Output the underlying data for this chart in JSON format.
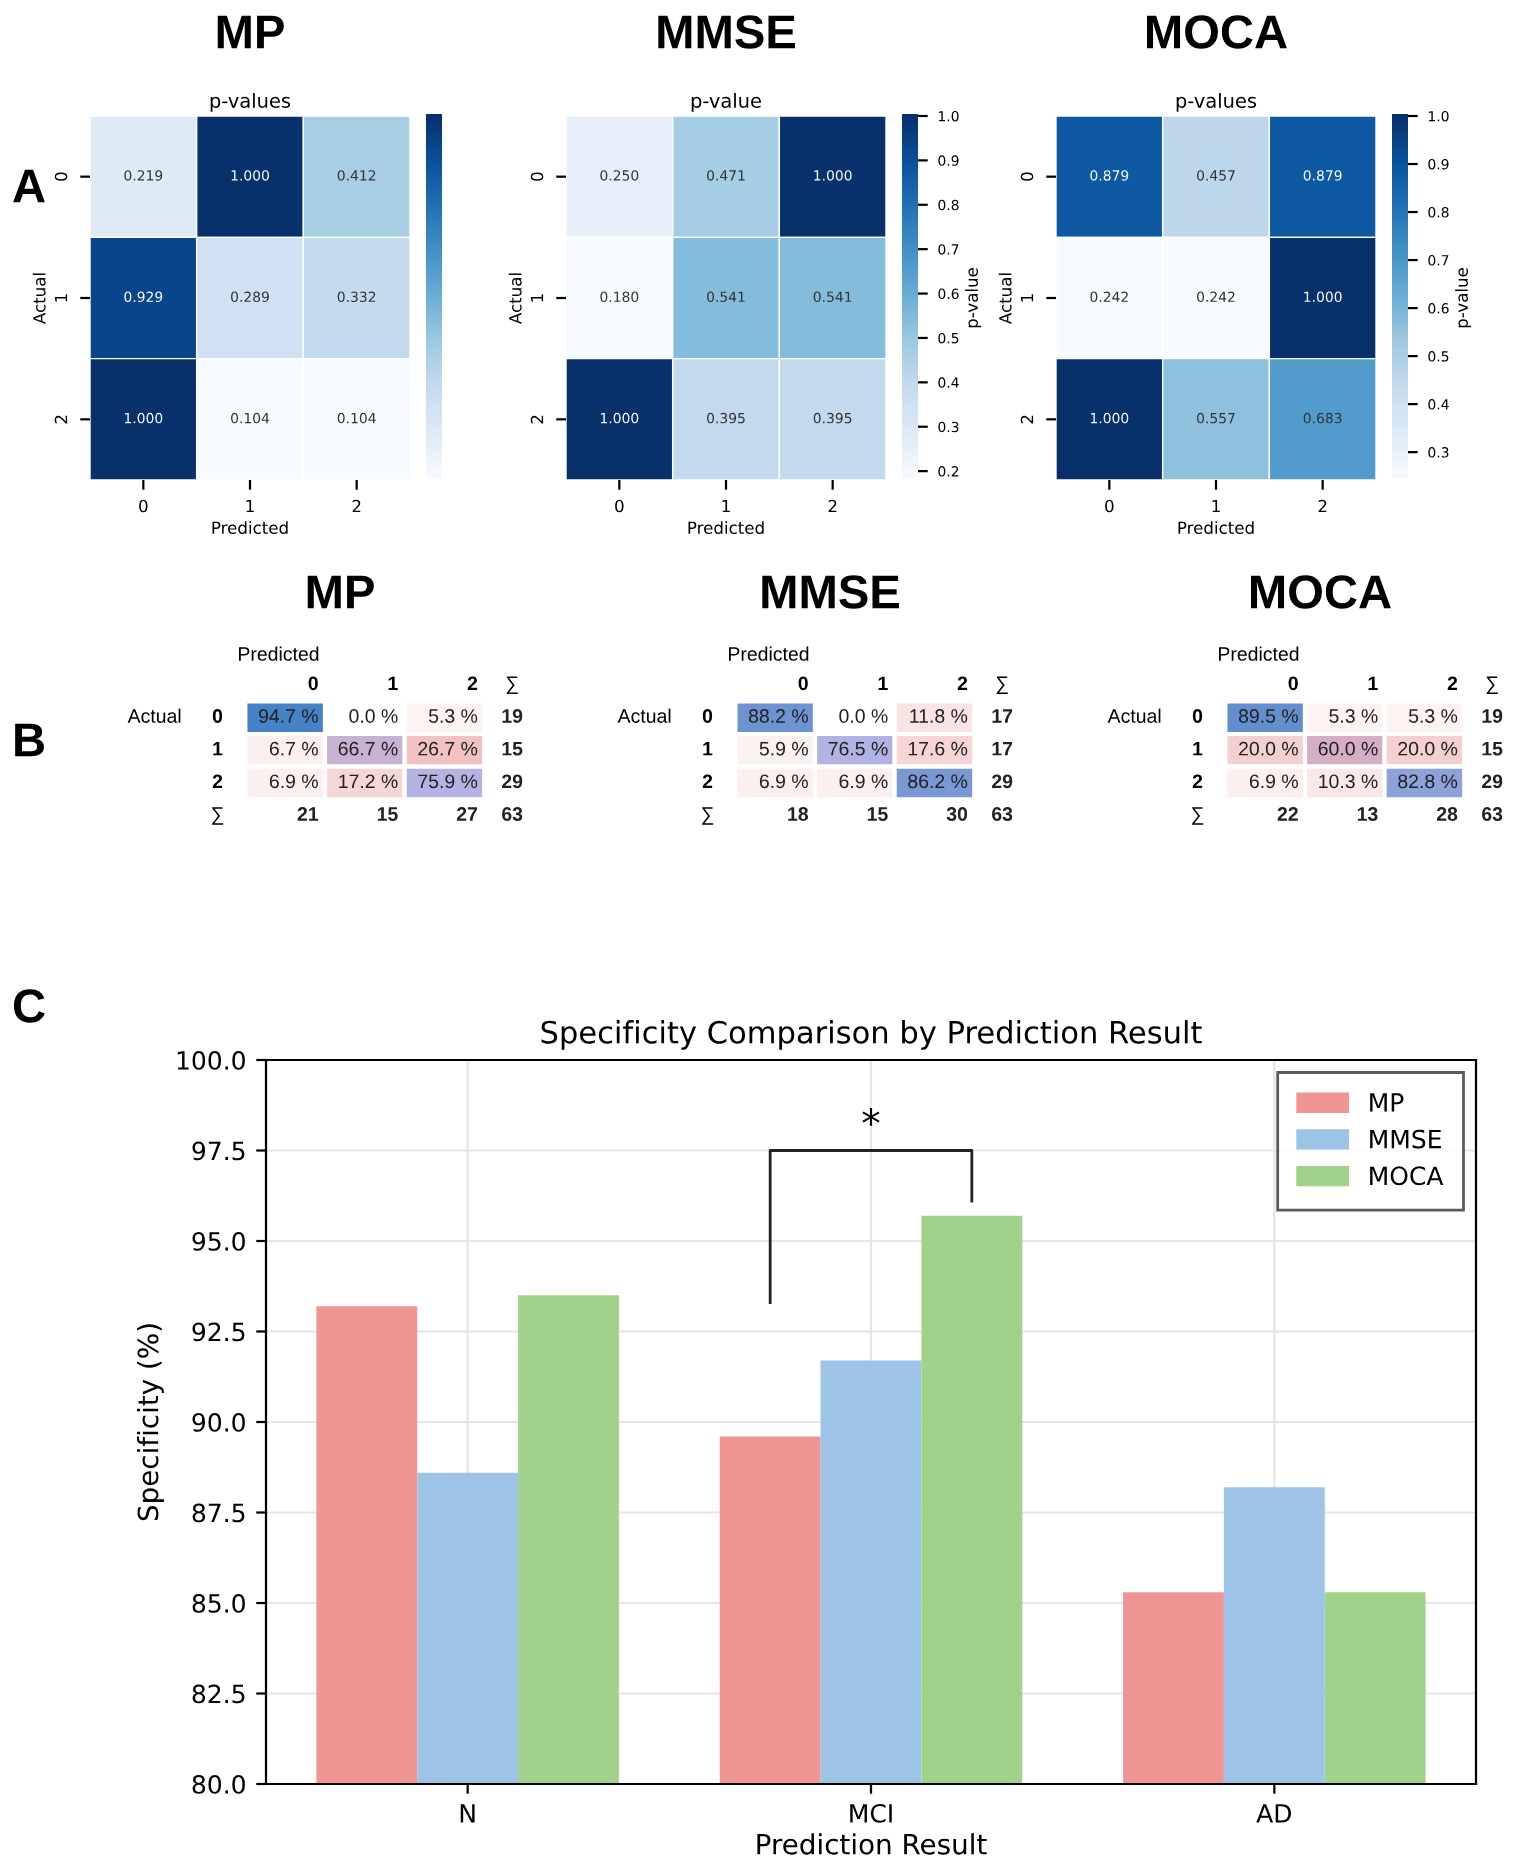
{
  "chart_data": [
    {
      "type": "heatmap",
      "title": "MP",
      "subtitle": "p-values",
      "xlabel": "Predicted",
      "ylabel": "Actual",
      "annotations": [
        "A"
      ],
      "categories": [
        "0",
        "1",
        "2"
      ],
      "y_categories": [
        "0",
        "1",
        "2"
      ],
      "cells": [
        [
          0.219,
          1.0,
          0.412
        ],
        [
          0.929,
          0.289,
          0.332
        ],
        [
          1.0,
          0.104,
          0.104
        ]
      ],
      "cell_labels": [
        [
          "0.219",
          "1.000",
          "0.412"
        ],
        [
          "0.929",
          "0.289",
          "0.332"
        ],
        [
          "1.000",
          "0.104",
          "0.104"
        ]
      ]
    },
    {
      "type": "heatmap",
      "title": "MMSE",
      "subtitle": "p-value",
      "xlabel": "Predicted",
      "ylabel": "Actual",
      "clabel": "p-value",
      "categories": [
        "0",
        "1",
        "2"
      ],
      "y_categories": [
        "0",
        "1",
        "2"
      ],
      "cells": [
        [
          0.25,
          0.471,
          1.0
        ],
        [
          0.18,
          0.541,
          0.541
        ],
        [
          1.0,
          0.395,
          0.395
        ]
      ],
      "cell_labels": [
        [
          "0.250",
          "0.471",
          "1.000"
        ],
        [
          "0.180",
          "0.541",
          "0.541"
        ],
        [
          "1.000",
          "0.395",
          "0.395"
        ]
      ],
      "clim": [
        0.18,
        1.0
      ],
      "cticks": [
        {
          "value": 0.2,
          "label": "0.2"
        },
        {
          "value": 0.3,
          "label": "0.3"
        },
        {
          "value": 0.4,
          "label": "0.4"
        },
        {
          "value": 0.5,
          "label": "0.5"
        },
        {
          "value": 0.6,
          "label": "0.6"
        },
        {
          "value": 0.7,
          "label": "0.7"
        },
        {
          "value": 0.8,
          "label": "0.8"
        },
        {
          "value": 0.9,
          "label": "0.9"
        },
        {
          "value": 1.0,
          "label": "1.0"
        }
      ]
    },
    {
      "type": "heatmap",
      "title": "MOCA",
      "subtitle": "p-values",
      "xlabel": "Predicted",
      "ylabel": "Actual",
      "clabel": "p-value",
      "categories": [
        "0",
        "1",
        "2"
      ],
      "y_categories": [
        "0",
        "1",
        "2"
      ],
      "cells": [
        [
          0.879,
          0.457,
          0.879
        ],
        [
          0.242,
          0.242,
          1.0
        ],
        [
          1.0,
          0.557,
          0.683
        ]
      ],
      "cell_labels": [
        [
          "0.879",
          "0.457",
          "0.879"
        ],
        [
          "0.242",
          "0.242",
          "1.000"
        ],
        [
          "1.000",
          "0.557",
          "0.683"
        ]
      ],
      "clim": [
        0.242,
        1.0
      ],
      "cticks": [
        {
          "value": 0.3,
          "label": "0.3"
        },
        {
          "value": 0.4,
          "label": "0.4"
        },
        {
          "value": 0.5,
          "label": "0.5"
        },
        {
          "value": 0.6,
          "label": "0.6"
        },
        {
          "value": 0.7,
          "label": "0.7"
        },
        {
          "value": 0.8,
          "label": "0.8"
        },
        {
          "value": 0.9,
          "label": "0.9"
        },
        {
          "value": 1.0,
          "label": "1.0"
        }
      ]
    },
    {
      "type": "heatmap",
      "title": "MP",
      "xlabel": "Predicted",
      "ylabel": "Actual",
      "annotations": [
        "B"
      ],
      "categories": [
        "0",
        "1",
        "2",
        "∑"
      ],
      "y_categories": [
        "0",
        "1",
        "2",
        "∑"
      ],
      "cells": [
        [
          94.7,
          0.0,
          5.3,
          19
        ],
        [
          6.7,
          66.7,
          26.7,
          15
        ],
        [
          6.9,
          17.2,
          75.9,
          29
        ],
        [
          21,
          15,
          27,
          63
        ]
      ],
      "cell_labels": [
        [
          "94.7 %",
          "0.0 %",
          "5.3 %",
          "19"
        ],
        [
          "6.7 %",
          "66.7 %",
          "26.7 %",
          "15"
        ],
        [
          "6.9 %",
          "17.2 %",
          "75.9 %",
          "29"
        ],
        [
          "21",
          "15",
          "27",
          "63"
        ]
      ]
    },
    {
      "type": "heatmap",
      "title": "MMSE",
      "xlabel": "Predicted",
      "ylabel": "Actual",
      "categories": [
        "0",
        "1",
        "2",
        "∑"
      ],
      "y_categories": [
        "0",
        "1",
        "2",
        "∑"
      ],
      "cells": [
        [
          88.2,
          0.0,
          11.8,
          17
        ],
        [
          5.9,
          76.5,
          17.6,
          17
        ],
        [
          6.9,
          6.9,
          86.2,
          29
        ],
        [
          18,
          15,
          30,
          63
        ]
      ],
      "cell_labels": [
        [
          "88.2 %",
          "0.0 %",
          "11.8 %",
          "17"
        ],
        [
          "5.9 %",
          "76.5 %",
          "17.6 %",
          "17"
        ],
        [
          "6.9 %",
          "6.9 %",
          "86.2 %",
          "29"
        ],
        [
          "18",
          "15",
          "30",
          "63"
        ]
      ]
    },
    {
      "type": "heatmap",
      "title": "MOCA",
      "xlabel": "Predicted",
      "ylabel": "Actual",
      "categories": [
        "0",
        "1",
        "2",
        "∑"
      ],
      "y_categories": [
        "0",
        "1",
        "2",
        "∑"
      ],
      "cells": [
        [
          89.5,
          5.3,
          5.3,
          19
        ],
        [
          20.0,
          60.0,
          20.0,
          15
        ],
        [
          6.9,
          10.3,
          82.8,
          29
        ],
        [
          22,
          13,
          28,
          63
        ]
      ],
      "cell_labels": [
        [
          "89.5 %",
          "5.3 %",
          "5.3 %",
          "19"
        ],
        [
          "20.0 %",
          "60.0 %",
          "20.0 %",
          "15"
        ],
        [
          "6.9 %",
          "10.3 %",
          "82.8 %",
          "29"
        ],
        [
          "22",
          "13",
          "28",
          "63"
        ]
      ]
    },
    {
      "type": "bar",
      "title": "Specificity Comparison by Prediction Result",
      "xlabel": "Prediction Result",
      "ylabel": "Specificity (%)",
      "annotations": [
        "C",
        "*"
      ],
      "categories": [
        "N",
        "MCI",
        "AD"
      ],
      "series": [
        {
          "name": "MP",
          "color": "#f09494",
          "values": [
            93.2,
            89.6,
            85.3
          ]
        },
        {
          "name": "MMSE",
          "color": "#9dc3e6",
          "values": [
            88.6,
            91.7,
            88.2
          ]
        },
        {
          "name": "MOCA",
          "color": "#a1d28b",
          "values": [
            93.5,
            95.7,
            85.3
          ]
        }
      ],
      "ylim": [
        80,
        100
      ],
      "yticks": [
        {
          "value": 80,
          "label": "80.0"
        },
        {
          "value": 82.5,
          "label": "82.5"
        },
        {
          "value": 85,
          "label": "85.0"
        },
        {
          "value": 87.5,
          "label": "87.5"
        },
        {
          "value": 90,
          "label": "90.0"
        },
        {
          "value": 92.5,
          "label": "92.5"
        },
        {
          "value": 95,
          "label": "95.0"
        },
        {
          "value": 97.5,
          "label": "97.5"
        },
        {
          "value": 100,
          "label": "100.0"
        }
      ],
      "grid": true,
      "legend": "top right"
    }
  ]
}
